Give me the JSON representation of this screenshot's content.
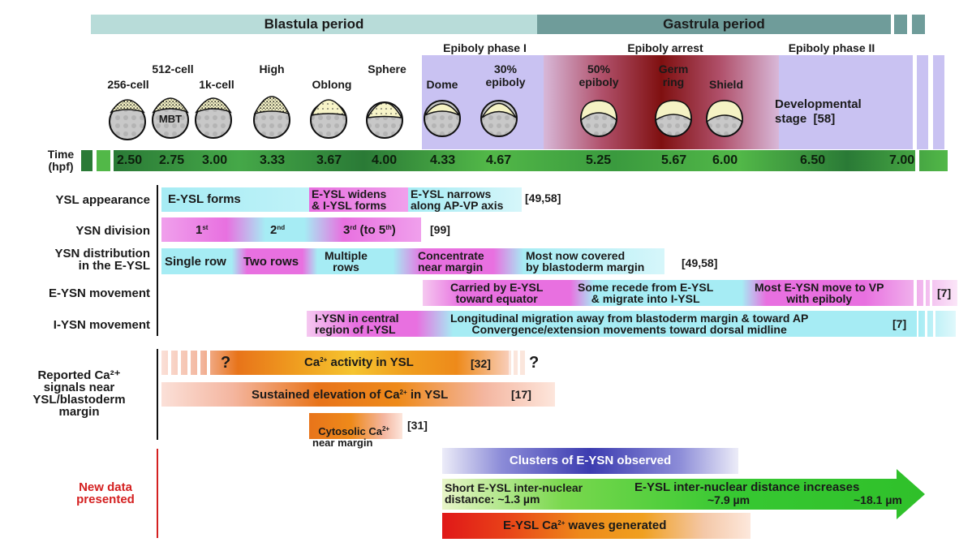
{
  "periods": {
    "blastula": "Blastula period",
    "gastrula": "Gastrula period"
  },
  "phases": {
    "epiboly_1": "Epiboly phase I",
    "arrest": "Epiboly arrest",
    "epiboly_2": "Epiboly phase II"
  },
  "stages": [
    {
      "id": "256",
      "label": "256-cell"
    },
    {
      "id": "512",
      "label": "512-cell"
    },
    {
      "id": "1k",
      "label": "1k-cell"
    },
    {
      "id": "high",
      "label": "High"
    },
    {
      "id": "oblong",
      "label": "Oblong"
    },
    {
      "id": "sphere",
      "label": "Sphere"
    },
    {
      "id": "dome",
      "label": "Dome"
    },
    {
      "id": "30",
      "label": "30%\nepiboly"
    },
    {
      "id": "50",
      "label": "50%\nepiboly"
    },
    {
      "id": "germ",
      "label": "Germ\nring"
    },
    {
      "id": "shield",
      "label": "Shield"
    }
  ],
  "mbt": "MBT",
  "dev_stage": "Developmental\nstage  [58]",
  "time": {
    "label": "Time\n(hpf)",
    "values": [
      "2.50",
      "2.75",
      "3.00",
      "3.33",
      "3.67",
      "4.00",
      "4.33",
      "4.67",
      "5.25",
      "5.67",
      "6.00",
      "6.50",
      "7.00"
    ]
  },
  "rows": {
    "ysl_appearance": "YSL appearance",
    "ysn_division": "YSN division",
    "ysn_distribution": "YSN distribution\nin the E-YSL",
    "eysn_movement": "E-YSN movement",
    "iysn_movement": "I-YSN movement",
    "ca_signals": "Reported Ca²⁺\nsignals near\nYSL/blastoderm\nmargin",
    "new_data": "New data\npresented"
  },
  "ysl_appearance": {
    "a": "E-YSL forms",
    "b": "E-YSL widens\n& I-YSL forms",
    "c": "E-YSL narrows\nalong AP-VP axis",
    "ref": "[49,58]"
  },
  "ysn_division": {
    "first": "1",
    "first_sup": "st",
    "second": "2",
    "second_sup": "nd",
    "third": "3",
    "third_sup": "rd",
    "third_rest": " (to 5",
    "third_rest_sup": "th",
    "close": ")",
    "ref": "[99]"
  },
  "ysn_distribution": {
    "a": "Single row",
    "b": "Two rows",
    "c": "Multiple\nrows",
    "d": "Concentrate\nnear margin",
    "e": "Most now covered\nby blastoderm margin",
    "ref": "[49,58]"
  },
  "eysn_movement": {
    "a": "Carried by E-YSL\ntoward equator",
    "b": "Some recede from E-YSL\n& migrate into I-YSL",
    "c": "Most E-YSN move to VP\nwith epiboly",
    "ref": "[7]"
  },
  "iysn_movement": {
    "a": "I-YSN in central\nregion of I-YSL",
    "b": "Longitudinal migration away from blastoderm margin & toward AP\nConvergence/extension movements toward dorsal midline",
    "ref": "[7]"
  },
  "ca": {
    "activity_pre": "Ca",
    "activity_sup": "2+",
    "activity_post": " activity in YSL",
    "activity_ref": "[32]",
    "q": "?",
    "sustained_pre": "Sustained elevation of Ca",
    "sustained_sup": "2+",
    "sustained_post": " in YSL",
    "sustained_ref": "[17]",
    "cyto_pre": "Cytosolic Ca",
    "cyto_sup": "2+",
    "cyto_post": "\nnear margin",
    "cyto_ref": "[31]"
  },
  "new": {
    "clusters": "Clusters of E-YSN observed",
    "short": "Short E-YSL inter-nuclear\ndistance: ~1.3 µm",
    "increase": "E-YSL inter-nuclear distance increases",
    "d1": "~7.9 µm",
    "d2": "~18.1 µm",
    "waves_pre": "E-YSL Ca",
    "waves_sup": "2+",
    "waves_post": " waves generated"
  },
  "colors": {
    "blastula": "#b8dcd9",
    "gastrula": "#6f9c9a",
    "phase": "#c9c2f2",
    "arrest": "#8b1a1a",
    "time_dark": "#2a7a36",
    "time_light": "#52b848",
    "magenta": "#e870e0",
    "cyan": "#a6ecf4",
    "orange": "#ee8a1a",
    "red_text": "#d42020",
    "blue": "#4a4ab8",
    "green": "#37c832"
  }
}
